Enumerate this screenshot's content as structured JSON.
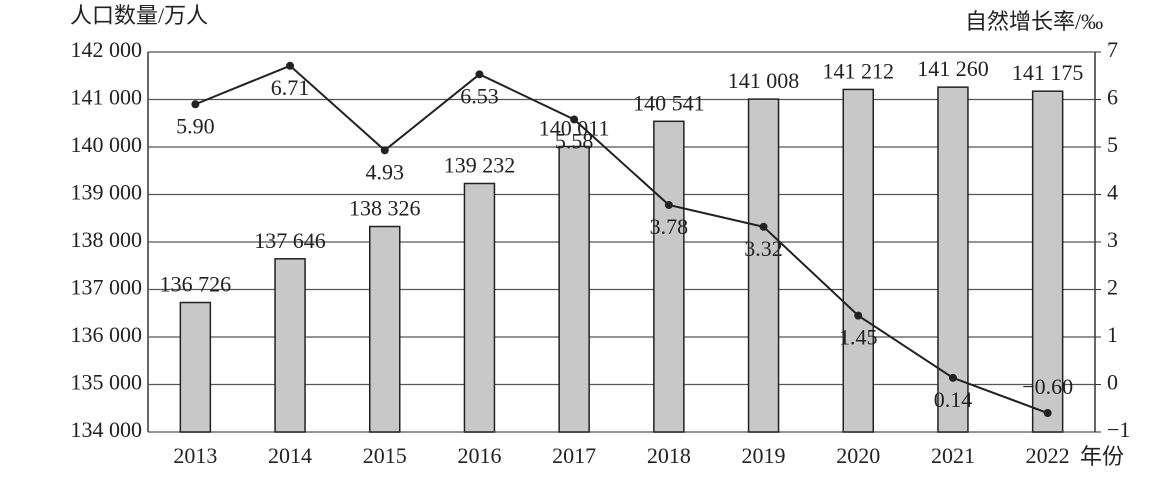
{
  "chart_data": {
    "type": "bar",
    "y_label": "人口数量/万人",
    "y2_label": "自然增长率/‰",
    "x_label": "年份",
    "categories": [
      "2013",
      "2014",
      "2015",
      "2016",
      "2017",
      "2018",
      "2019",
      "2020",
      "2021",
      "2022"
    ],
    "series": [
      {
        "type": "bar",
        "color": "#c8c8c8",
        "values": [
          136726,
          137646,
          138326,
          139232,
          140011,
          140541,
          141008,
          141212,
          141260,
          141175
        ],
        "value_labels": [
          "136 726",
          "137 646",
          "138 326",
          "139 232",
          "140 011",
          "140 541",
          "141 008",
          "141 212",
          "141 260",
          "141 175"
        ]
      },
      {
        "type": "line",
        "axis": "y2",
        "color": "#222222",
        "values": [
          5.9,
          6.71,
          4.93,
          6.53,
          5.58,
          3.78,
          3.32,
          1.45,
          0.14,
          -0.6
        ],
        "value_labels": [
          "5.90",
          "6.71",
          "4.93",
          "6.53",
          "5.58",
          "3.78",
          "3.32",
          "1.45",
          "0.14",
          "−0.60"
        ]
      }
    ],
    "ylim": [
      134000,
      142000
    ],
    "yticks": [
      {
        "value": 134000,
        "label": "134 000"
      },
      {
        "value": 135000,
        "label": "135 000"
      },
      {
        "value": 136000,
        "label": "136 000"
      },
      {
        "value": 137000,
        "label": "137 000"
      },
      {
        "value": 138000,
        "label": "138 000"
      },
      {
        "value": 139000,
        "label": "139 000"
      },
      {
        "value": 140000,
        "label": "140 000"
      },
      {
        "value": 141000,
        "label": "141 000"
      },
      {
        "value": 142000,
        "label": "142 000"
      }
    ],
    "y2lim": [
      -1,
      7
    ],
    "y2ticks": [
      {
        "value": -1,
        "label": "−1"
      },
      0,
      1,
      2,
      3,
      4,
      5,
      6,
      7
    ],
    "grid": true
  }
}
